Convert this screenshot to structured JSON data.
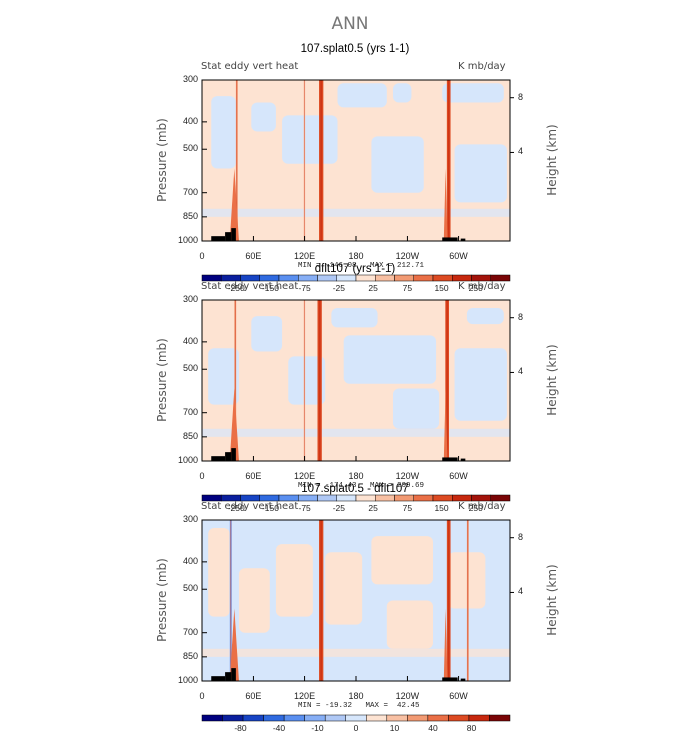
{
  "title": "ANN",
  "chart_data": [
    {
      "type": "heatmap",
      "title": "107.splat0.5 (yrs 1-1)",
      "left_label": "Stat eddy vert heat",
      "right_label": "K mb/day",
      "ylabel": "Pressure (mb)",
      "y2label": "Height (km)",
      "yticks": [
        "300",
        "400",
        "500",
        "700",
        "850",
        "1000"
      ],
      "y2ticks": [
        "8",
        "4"
      ],
      "xticks": [
        "0",
        "60E",
        "120E",
        "180",
        "120W",
        "60W"
      ],
      "min_max": "MIN = -146.08   MAX = 212.71",
      "colorbar": {
        "labels": [
          "-250",
          "-150",
          "-75",
          "-25",
          "25",
          "75",
          "150",
          "250"
        ],
        "colors": [
          "#00007f",
          "#0a1f9e",
          "#1744c4",
          "#2f6ae0",
          "#5a8ff0",
          "#86aef5",
          "#afc8f5",
          "#d6e6fb",
          "#fde3d2",
          "#f8c0a3",
          "#f29a73",
          "#ea6f46",
          "#dd4a22",
          "#c7280e",
          "#a3130a",
          "#7a0506"
        ]
      },
      "field": {
        "background": "#fde3d2",
        "blue_patches": [
          [
            0.03,
            0.1,
            0.08,
            0.45
          ],
          [
            0.16,
            0.14,
            0.08,
            0.18
          ],
          [
            0.26,
            0.22,
            0.18,
            0.3
          ],
          [
            0.44,
            0.02,
            0.16,
            0.15
          ],
          [
            0.55,
            0.35,
            0.17,
            0.35
          ],
          [
            0.78,
            0.02,
            0.2,
            0.12
          ],
          [
            0.82,
            0.4,
            0.17,
            0.36
          ],
          [
            0.62,
            0.02,
            0.06,
            0.12
          ]
        ],
        "red_bands": [
          {
            "x": 0.38,
            "w": 0.014,
            "color": "#dd4a22"
          },
          {
            "x": 0.795,
            "w": 0.012,
            "color": "#dd4a22"
          },
          {
            "x": 0.11,
            "w": 0.006,
            "color": "#f29a73"
          },
          {
            "x": 0.33,
            "w": 0.005,
            "color": "#f8c0a3"
          }
        ],
        "surface_spikes": [
          {
            "x": 0.09,
            "w": 0.03
          },
          {
            "x": 0.785,
            "w": 0.012
          }
        ],
        "topography": [
          {
            "x": 0.03,
            "w": 0.045,
            "h": 0.03
          },
          {
            "x": 0.075,
            "w": 0.02,
            "h": 0.055
          },
          {
            "x": 0.095,
            "w": 0.015,
            "h": 0.08
          },
          {
            "x": 0.78,
            "w": 0.05,
            "h": 0.022
          },
          {
            "x": 0.84,
            "w": 0.015,
            "h": 0.015
          }
        ]
      }
    },
    {
      "type": "heatmap",
      "title": "dflt107 (yrs 1-1)",
      "left_label": "Stat eddy vert heat",
      "right_label": "K mb/day",
      "ylabel": "Pressure (mb)",
      "y2label": "Height (km)",
      "yticks": [
        "300",
        "400",
        "500",
        "700",
        "850",
        "1000"
      ],
      "y2ticks": [
        "8",
        "4"
      ],
      "xticks": [
        "0",
        "60E",
        "120E",
        "180",
        "120W",
        "60W"
      ],
      "min_max": "MIN = -174.43   MAX = 209.69",
      "colorbar": {
        "labels": [
          "-250",
          "-150",
          "-75",
          "-25",
          "25",
          "75",
          "150",
          "250"
        ],
        "colors": [
          "#00007f",
          "#0a1f9e",
          "#1744c4",
          "#2f6ae0",
          "#5a8ff0",
          "#86aef5",
          "#afc8f5",
          "#d6e6fb",
          "#fde3d2",
          "#f8c0a3",
          "#f29a73",
          "#ea6f46",
          "#dd4a22",
          "#c7280e",
          "#a3130a",
          "#7a0506"
        ]
      },
      "field": {
        "background": "#fde3d2",
        "blue_patches": [
          [
            0.02,
            0.3,
            0.1,
            0.35
          ],
          [
            0.16,
            0.1,
            0.1,
            0.22
          ],
          [
            0.28,
            0.35,
            0.12,
            0.3
          ],
          [
            0.42,
            0.05,
            0.15,
            0.12
          ],
          [
            0.46,
            0.22,
            0.3,
            0.3
          ],
          [
            0.62,
            0.55,
            0.15,
            0.25
          ],
          [
            0.82,
            0.3,
            0.17,
            0.45
          ],
          [
            0.86,
            0.05,
            0.12,
            0.1
          ]
        ],
        "red_bands": [
          {
            "x": 0.375,
            "w": 0.014,
            "color": "#dd4a22"
          },
          {
            "x": 0.79,
            "w": 0.012,
            "color": "#dd4a22"
          },
          {
            "x": 0.105,
            "w": 0.006,
            "color": "#f29a73"
          },
          {
            "x": 0.33,
            "w": 0.005,
            "color": "#f8c0a3"
          }
        ],
        "surface_spikes": [
          {
            "x": 0.09,
            "w": 0.03
          },
          {
            "x": 0.785,
            "w": 0.012
          }
        ],
        "topography": [
          {
            "x": 0.03,
            "w": 0.045,
            "h": 0.03
          },
          {
            "x": 0.075,
            "w": 0.02,
            "h": 0.055
          },
          {
            "x": 0.095,
            "w": 0.015,
            "h": 0.08
          },
          {
            "x": 0.78,
            "w": 0.05,
            "h": 0.022
          },
          {
            "x": 0.84,
            "w": 0.015,
            "h": 0.015
          }
        ]
      }
    },
    {
      "type": "heatmap",
      "title": "107.splat0.5 - dflt107",
      "left_label": "Stat eddy vert heat",
      "right_label": "K mb/day",
      "ylabel": "Pressure (mb)",
      "y2label": "Height (km)",
      "yticks": [
        "300",
        "400",
        "500",
        "700",
        "850",
        "1000"
      ],
      "y2ticks": [
        "8",
        "4"
      ],
      "xticks": [
        "0",
        "60E",
        "120E",
        "180",
        "120W",
        "60W"
      ],
      "min_max": "MIN = -19.32   MAX =  42.45",
      "colorbar": {
        "labels": [
          "-80",
          "-40",
          "-10",
          "0",
          "10",
          "40",
          "80"
        ],
        "colors": [
          "#00007f",
          "#0a1f9e",
          "#1744c4",
          "#2f6ae0",
          "#5a8ff0",
          "#86aef5",
          "#afc8f5",
          "#d6e6fb",
          "#fde3d2",
          "#f8c0a3",
          "#f29a73",
          "#ea6f46",
          "#dd4a22",
          "#c7280e",
          "#7a0506"
        ]
      },
      "field": {
        "background": "#d6e6fb",
        "blue_patches": [],
        "orange_patches": [
          [
            0.02,
            0.05,
            0.07,
            0.55
          ],
          [
            0.12,
            0.3,
            0.1,
            0.4
          ],
          [
            0.24,
            0.15,
            0.12,
            0.45
          ],
          [
            0.4,
            0.2,
            0.12,
            0.45
          ],
          [
            0.55,
            0.1,
            0.2,
            0.3
          ],
          [
            0.6,
            0.5,
            0.15,
            0.3
          ],
          [
            0.8,
            0.2,
            0.12,
            0.35
          ]
        ],
        "red_bands": [
          {
            "x": 0.38,
            "w": 0.014,
            "color": "#dd4a22"
          },
          {
            "x": 0.795,
            "w": 0.012,
            "color": "#dd4a22"
          },
          {
            "x": 0.86,
            "w": 0.006,
            "color": "#f29a73"
          },
          {
            "x": 0.09,
            "w": 0.007,
            "color": "#86aef5"
          }
        ],
        "surface_spikes": [
          {
            "x": 0.09,
            "w": 0.03
          },
          {
            "x": 0.785,
            "w": 0.012
          }
        ],
        "topography": [
          {
            "x": 0.03,
            "w": 0.045,
            "h": 0.03
          },
          {
            "x": 0.075,
            "w": 0.02,
            "h": 0.055
          },
          {
            "x": 0.095,
            "w": 0.015,
            "h": 0.08
          },
          {
            "x": 0.78,
            "w": 0.05,
            "h": 0.022
          },
          {
            "x": 0.84,
            "w": 0.015,
            "h": 0.015
          }
        ]
      }
    }
  ]
}
